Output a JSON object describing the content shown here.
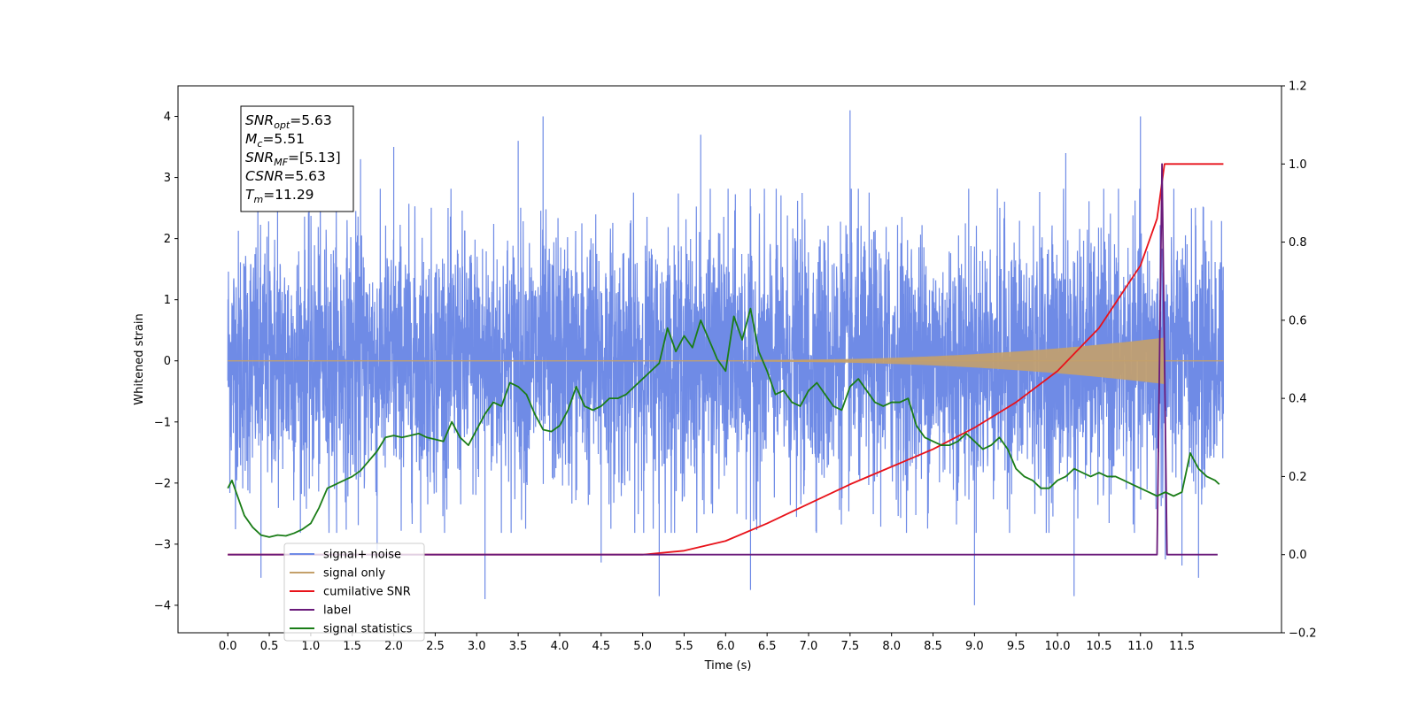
{
  "chart_data": {
    "type": "line",
    "xlabel": "Time (s)",
    "ylabel_left": "Whitened strain",
    "xlim": [
      -0.6,
      12.7
    ],
    "ylim_left": [
      -4.45,
      4.5
    ],
    "ylim_right": [
      -0.2,
      1.2
    ],
    "x_ticks": [
      "0.0",
      "0.5",
      "1.0",
      "1.5",
      "2.0",
      "2.5",
      "3.0",
      "3.5",
      "4.0",
      "4.5",
      "5.0",
      "5.5",
      "6.0",
      "6.5",
      "7.0",
      "7.5",
      "8.0",
      "8.5",
      "9.0",
      "9.5",
      "10.0",
      "10.5",
      "11.0",
      "11.5"
    ],
    "y_ticks_left": [
      "4",
      "3",
      "2",
      "1",
      "0",
      "−1",
      "−2",
      "−3",
      "−4"
    ],
    "y_ticks_right": [
      "1.2",
      "1.0",
      "0.8",
      "0.6",
      "0.4",
      "0.2",
      "0.0",
      "−0.2"
    ],
    "grid": false,
    "legend_location": "lower-left",
    "stats_box": [
      {
        "base": "SNR",
        "sub": "opt",
        "value": "=5.63"
      },
      {
        "base": "M",
        "sub": "c",
        "value": "=5.51"
      },
      {
        "base": "SNR",
        "sub": "MF",
        "value": "=[5.13]"
      },
      {
        "base": "CSNR",
        "sub": "",
        "value": "=5.63"
      },
      {
        "base": "T",
        "sub": "m",
        "value": "=11.29"
      }
    ],
    "series": [
      {
        "name": "signal+ noise",
        "axis": "left",
        "color": "#6f8be6",
        "kind": "noise",
        "x_range": [
          0.0,
          12.0
        ],
        "envelope_typical": 2.2,
        "peaks": [
          [
            0.6,
            2.9
          ],
          [
            1.6,
            3.3
          ],
          [
            2.0,
            3.5
          ],
          [
            3.5,
            3.6
          ],
          [
            3.8,
            4.0
          ],
          [
            5.7,
            3.7
          ],
          [
            7.5,
            4.1
          ],
          [
            10.1,
            3.4
          ],
          [
            11.0,
            4.0
          ],
          [
            0.4,
            -3.55
          ],
          [
            1.8,
            -3.1
          ],
          [
            3.1,
            -3.9
          ],
          [
            4.5,
            -3.3
          ],
          [
            5.2,
            -3.85
          ],
          [
            6.3,
            -3.75
          ],
          [
            9.0,
            -4.0
          ],
          [
            10.2,
            -3.85
          ],
          [
            11.3,
            -3.25
          ],
          [
            11.5,
            -3.35
          ],
          [
            11.7,
            -3.55
          ]
        ]
      },
      {
        "name": "signal only",
        "axis": "left",
        "color": "#c4a06a",
        "kind": "chirp",
        "start": 6.3,
        "merger": 11.29,
        "amplitude_at_merger": 0.38
      },
      {
        "name": "cumilative SNR",
        "axis": "right",
        "color": "#e8121a",
        "x": [
          0.0,
          4.5,
          5.0,
          5.5,
          6.0,
          6.5,
          7.0,
          7.5,
          8.0,
          8.5,
          9.0,
          9.5,
          10.0,
          10.5,
          11.0,
          11.2,
          11.29,
          12.0
        ],
        "y": [
          0.0,
          0.0,
          0.0,
          0.01,
          0.035,
          0.08,
          0.13,
          0.18,
          0.225,
          0.27,
          0.325,
          0.39,
          0.47,
          0.58,
          0.74,
          0.86,
          1.0,
          1.0
        ]
      },
      {
        "name": "label",
        "axis": "right",
        "color": "#6a1a7a",
        "x": [
          0.0,
          11.2,
          11.26,
          11.32,
          11.93
        ],
        "y": [
          0.0,
          0.0,
          1.0,
          0.0,
          0.0
        ]
      },
      {
        "name": "signal statistics",
        "axis": "right",
        "color": "#1a7d17",
        "x": [
          0.0,
          0.05,
          0.1,
          0.15,
          0.2,
          0.3,
          0.4,
          0.5,
          0.6,
          0.7,
          0.8,
          0.9,
          1.0,
          1.1,
          1.2,
          1.3,
          1.4,
          1.5,
          1.6,
          1.7,
          1.8,
          1.9,
          2.0,
          2.1,
          2.2,
          2.3,
          2.4,
          2.5,
          2.6,
          2.7,
          2.8,
          2.9,
          3.0,
          3.1,
          3.2,
          3.3,
          3.4,
          3.5,
          3.6,
          3.7,
          3.8,
          3.9,
          4.0,
          4.1,
          4.2,
          4.3,
          4.4,
          4.5,
          4.6,
          4.7,
          4.8,
          4.9,
          5.0,
          5.1,
          5.2,
          5.3,
          5.4,
          5.5,
          5.6,
          5.7,
          5.8,
          5.9,
          6.0,
          6.1,
          6.2,
          6.3,
          6.4,
          6.5,
          6.6,
          6.7,
          6.8,
          6.9,
          7.0,
          7.1,
          7.2,
          7.3,
          7.4,
          7.5,
          7.6,
          7.7,
          7.8,
          7.9,
          8.0,
          8.1,
          8.2,
          8.3,
          8.4,
          8.5,
          8.6,
          8.7,
          8.8,
          8.9,
          9.0,
          9.1,
          9.2,
          9.3,
          9.4,
          9.5,
          9.6,
          9.7,
          9.8,
          9.9,
          10.0,
          10.1,
          10.2,
          10.3,
          10.4,
          10.5,
          10.6,
          10.7,
          10.8,
          10.9,
          11.0,
          11.1,
          11.2,
          11.3,
          11.4,
          11.5,
          11.6,
          11.7,
          11.8,
          11.9,
          11.95
        ],
        "y": [
          0.17,
          0.19,
          0.16,
          0.13,
          0.1,
          0.07,
          0.05,
          0.045,
          0.05,
          0.048,
          0.055,
          0.065,
          0.08,
          0.12,
          0.17,
          0.18,
          0.19,
          0.2,
          0.215,
          0.24,
          0.265,
          0.3,
          0.305,
          0.3,
          0.305,
          0.31,
          0.3,
          0.295,
          0.29,
          0.34,
          0.3,
          0.28,
          0.32,
          0.36,
          0.39,
          0.38,
          0.44,
          0.43,
          0.41,
          0.36,
          0.32,
          0.315,
          0.33,
          0.37,
          0.43,
          0.38,
          0.37,
          0.38,
          0.4,
          0.4,
          0.41,
          0.43,
          0.45,
          0.47,
          0.49,
          0.58,
          0.52,
          0.56,
          0.53,
          0.6,
          0.55,
          0.5,
          0.47,
          0.61,
          0.55,
          0.63,
          0.52,
          0.47,
          0.41,
          0.42,
          0.39,
          0.38,
          0.42,
          0.44,
          0.41,
          0.38,
          0.37,
          0.43,
          0.45,
          0.42,
          0.39,
          0.38,
          0.39,
          0.39,
          0.4,
          0.33,
          0.3,
          0.29,
          0.28,
          0.28,
          0.29,
          0.31,
          0.29,
          0.27,
          0.28,
          0.3,
          0.27,
          0.22,
          0.2,
          0.19,
          0.17,
          0.17,
          0.19,
          0.2,
          0.22,
          0.21,
          0.2,
          0.21,
          0.2,
          0.2,
          0.19,
          0.18,
          0.17,
          0.16,
          0.15,
          0.16,
          0.15,
          0.16,
          0.26,
          0.22,
          0.2,
          0.19,
          0.18
        ]
      }
    ]
  }
}
